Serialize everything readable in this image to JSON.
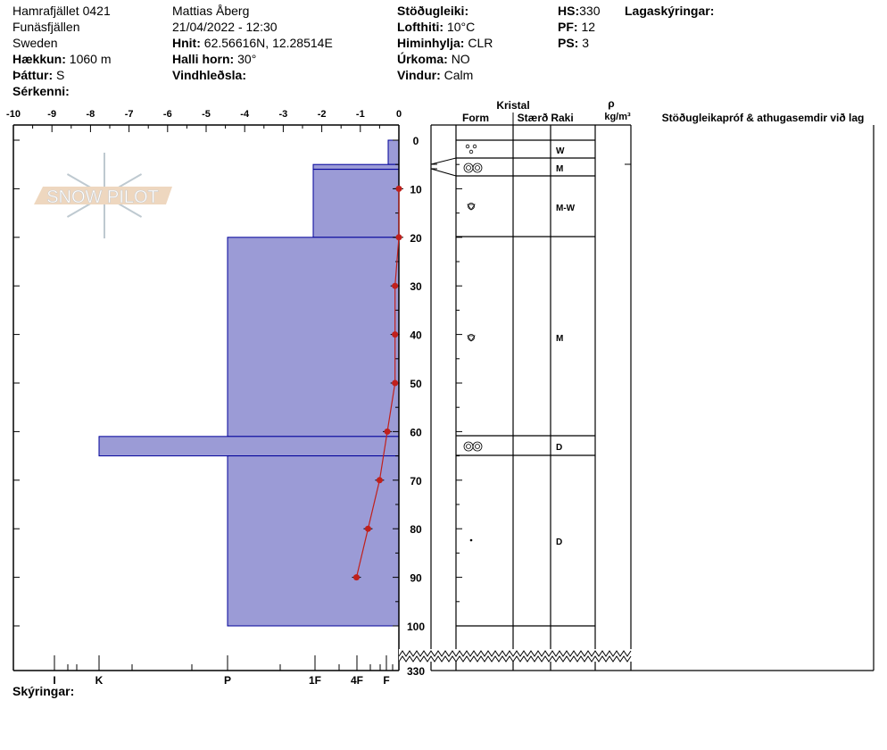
{
  "header": {
    "site": "Hamrafjället 0421",
    "range": "Funäsfjällen",
    "country": "Sweden",
    "elevation_label": "Hækkun:",
    "elevation": "1060 m",
    "aspect_label": "Þáttur:",
    "aspect": "S",
    "features_label": "Sérkenni:",
    "observer": "Mattias Åberg",
    "datetime": "21/04/2022 - 12:30",
    "coords_label": "Hnit:",
    "coords": "62.56616N, 12.28514E",
    "slope_label": "Halli horn:",
    "slope": "30°",
    "wind_loading_label": "Vindhleðsla:",
    "stability_label": "Stöðugleiki:",
    "air_temp_label": "Lofthiti:",
    "air_temp": "10°C",
    "sky_label": "Himinhylja:",
    "sky": "CLR",
    "precip_label": "Úrkoma:",
    "precip": "NO",
    "wind_label": "Vindur:",
    "wind": "Calm",
    "hs_label": "HS:",
    "hs": "330",
    "pf_label": "PF:",
    "pf": "12",
    "ps_label": "PS:",
    "ps": "3",
    "layer_notes_label": "Lagaskýringar:"
  },
  "logo": {
    "text": "SNOW PILOT"
  },
  "temp_axis": {
    "ticks": [
      "-10",
      "-9",
      "-8",
      "-7",
      "-6",
      "-5",
      "-4",
      "-3",
      "-2",
      "-1",
      "0"
    ]
  },
  "hardness_axis": {
    "labels": [
      "I",
      "K",
      "P",
      "1F",
      "4F",
      "F"
    ]
  },
  "depth_axis": {
    "ticks": [
      "0",
      "10",
      "20",
      "30",
      "40",
      "50",
      "60",
      "70",
      "80",
      "90",
      "100"
    ],
    "bottom": "330"
  },
  "table_header": {
    "crystal": "Kristal",
    "form": "Form",
    "size": "Stærð",
    "moisture": "Raki",
    "rho": "ρ",
    "density_unit": "kg/m³",
    "notes": "Stöðugleikapróf & athugasemdir við lag"
  },
  "footer": {
    "comments_label": "Skýringar:"
  },
  "colors": {
    "hardness_fill": "#9b9bd6",
    "hardness_stroke": "#00009a",
    "temp": "#c0201c"
  },
  "chart_data": {
    "type": "snow-profile",
    "temperature_xlim": [
      -10,
      0
    ],
    "depth_ylim": [
      0,
      100
    ],
    "temperature_profile": [
      {
        "depth": 10,
        "temp": 0
      },
      {
        "depth": 20,
        "temp": 0
      },
      {
        "depth": 30,
        "temp": -0.1
      },
      {
        "depth": 40,
        "temp": -0.1
      },
      {
        "depth": 50,
        "temp": -0.1
      },
      {
        "depth": 60,
        "temp": -0.3
      },
      {
        "depth": 70,
        "temp": -0.5
      },
      {
        "depth": 80,
        "temp": -0.8
      },
      {
        "depth": 90,
        "temp": -1.1
      }
    ],
    "layers": [
      {
        "top": 0,
        "bottom": 5,
        "hardness": "F",
        "form": "decomposing",
        "moisture": "W"
      },
      {
        "top": 5,
        "bottom": 6,
        "hardness": "1F",
        "form": "melt-clusters",
        "moisture": "M"
      },
      {
        "top": 6,
        "bottom": 20,
        "hardness": "1F",
        "form": "rounded-faceted",
        "moisture": "M-W"
      },
      {
        "top": 20,
        "bottom": 61,
        "hardness": "P",
        "form": "rounded-faceted",
        "moisture": "M"
      },
      {
        "top": 61,
        "bottom": 65,
        "hardness": "K",
        "form": "melt-clusters",
        "moisture": "D"
      },
      {
        "top": 65,
        "bottom": 100,
        "hardness": "P",
        "form": "dot",
        "moisture": "D"
      }
    ]
  }
}
